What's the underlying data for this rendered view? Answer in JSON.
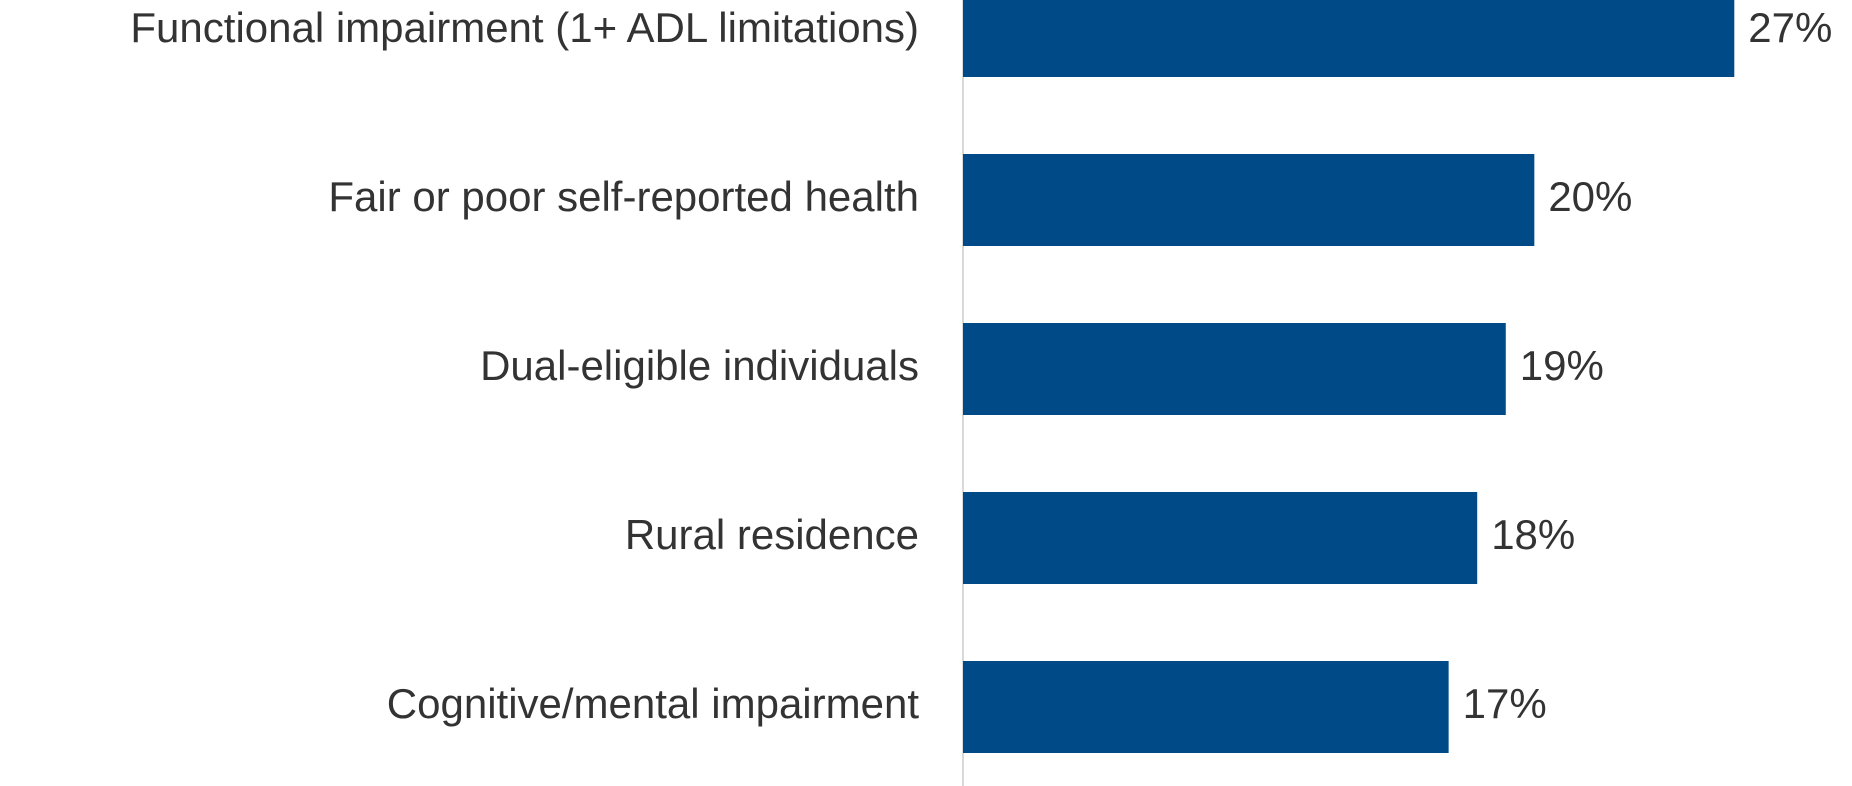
{
  "chart_data": {
    "type": "hbar",
    "categories": [
      "Functional impairment (1+ ADL limitations)",
      "Fair or poor self-reported health",
      "Dual-eligible individuals",
      "Rural residence",
      "Cognitive/mental impairment"
    ],
    "values": [
      27,
      20,
      19,
      18,
      17
    ],
    "value_labels": [
      "27%",
      "20%",
      "19%",
      "18%",
      "17%"
    ],
    "color": "#004b87",
    "xlim": [
      0,
      30
    ]
  }
}
